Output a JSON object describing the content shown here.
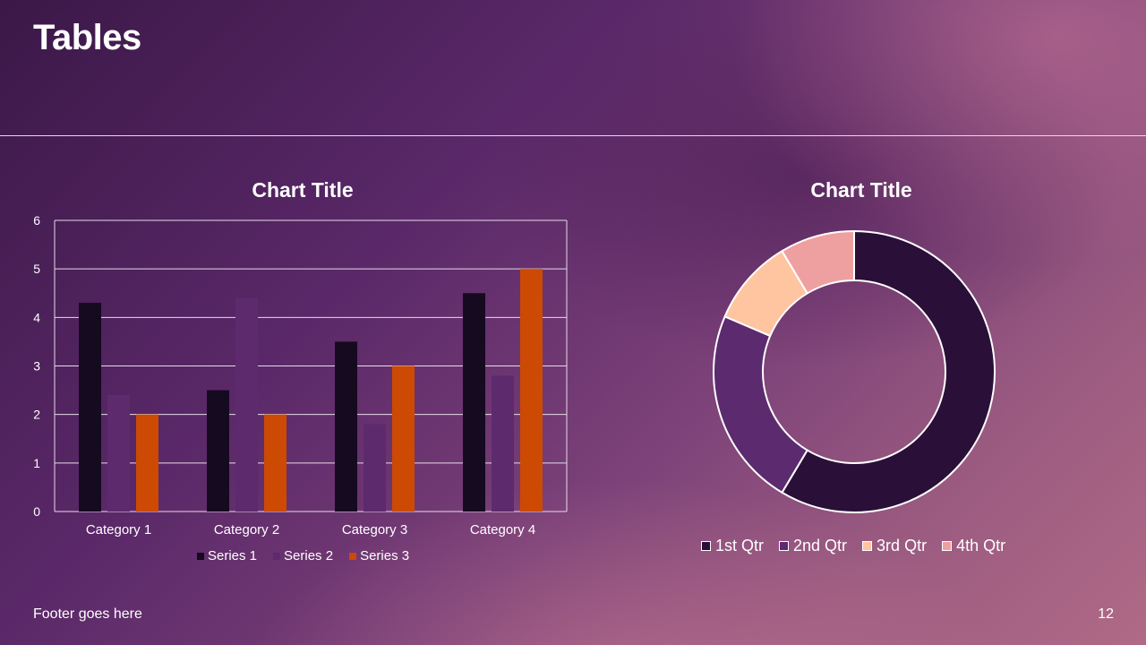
{
  "slide": {
    "title": "Tables",
    "footer": "Footer goes here",
    "page_number": "12"
  },
  "colors": {
    "series_1": "#150a1f",
    "series_2": "#5e2a6e",
    "series_3": "#cc4a04",
    "q1": "#2a0f38",
    "q2": "#5c2a6e",
    "q3": "#ffc4a0",
    "q4": "#eea0a0"
  },
  "chart_data": [
    {
      "type": "bar",
      "title": "Chart Title",
      "categories": [
        "Category 1",
        "Category 2",
        "Category 3",
        "Category 4"
      ],
      "series": [
        {
          "name": "Series 1",
          "values": [
            4.3,
            2.5,
            3.5,
            4.5
          ]
        },
        {
          "name": "Series 2",
          "values": [
            2.4,
            4.4,
            1.8,
            2.8
          ]
        },
        {
          "name": "Series 3",
          "values": [
            2,
            2,
            3,
            5
          ]
        }
      ],
      "yticks": [
        "0",
        "1",
        "2",
        "3",
        "4",
        "5",
        "6"
      ],
      "ylim": [
        0,
        6
      ],
      "grid": true,
      "legend": "bottom"
    },
    {
      "type": "pie",
      "subtype": "donut",
      "title": "Chart Title",
      "labels": [
        "1st Qtr",
        "2nd Qtr",
        "3rd Qtr",
        "4th Qtr"
      ],
      "values": [
        8.2,
        3.2,
        1.4,
        1.2
      ],
      "legend": "bottom"
    }
  ]
}
